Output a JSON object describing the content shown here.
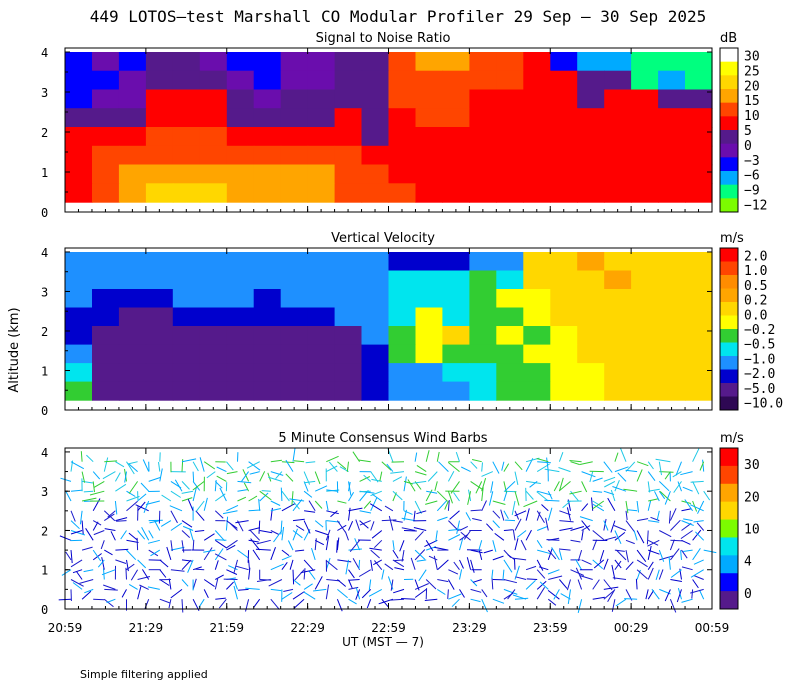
{
  "figure": {
    "title": "449 LOTOS—test Marshall CO Modular Profiler 29 Sep — 30 Sep 2025",
    "ylabel": "Altitude (km)",
    "xlabel": "UT  (MST — 7)",
    "footnote": "Simple filtering applied"
  },
  "chart_data": [
    {
      "type": "heatmap",
      "title": "Signal to Noise Ratio",
      "x_ticks": [
        "20:59",
        "21:29",
        "21:59",
        "22:29",
        "22:59",
        "23:29",
        "23:59",
        "00:29",
        "00:59"
      ],
      "y_ticks": [
        "0",
        "1",
        "2",
        "3",
        "4"
      ],
      "ylim": [
        0,
        4.1
      ],
      "colorbar": {
        "unit": "dB",
        "labels": [
          "30",
          "25",
          "20",
          "15",
          "10",
          "5",
          "0",
          "−3",
          "−6",
          "−9",
          "−12"
        ],
        "colors": [
          "#ffffff",
          "#ffff00",
          "#ffd700",
          "#ffa500",
          "#ff4500",
          "#ff0000",
          "#551a8b",
          "#6a0dad",
          "#0000ff",
          "#00aaff",
          "#00ff7f",
          "#7cfc00"
        ]
      },
      "cells": [
        [
          8,
          7,
          8,
          6,
          6,
          7,
          8,
          8,
          7,
          7,
          6,
          6,
          4,
          3,
          3,
          4,
          4,
          5,
          8,
          9,
          9,
          10,
          10,
          10
        ],
        [
          8,
          8,
          7,
          6,
          6,
          6,
          7,
          8,
          7,
          7,
          6,
          6,
          4,
          4,
          4,
          4,
          4,
          5,
          5,
          6,
          6,
          10,
          9,
          10
        ],
        [
          8,
          7,
          7,
          5,
          5,
          5,
          6,
          7,
          6,
          6,
          6,
          6,
          4,
          4,
          4,
          5,
          5,
          5,
          5,
          6,
          5,
          5,
          6,
          6
        ],
        [
          6,
          6,
          6,
          5,
          5,
          5,
          6,
          6,
          6,
          6,
          5,
          6,
          5,
          4,
          4,
          5,
          5,
          5,
          5,
          5,
          5,
          5,
          5,
          5
        ],
        [
          5,
          5,
          5,
          4,
          4,
          4,
          5,
          5,
          5,
          5,
          5,
          6,
          5,
          5,
          5,
          5,
          5,
          5,
          5,
          5,
          5,
          5,
          5,
          5
        ],
        [
          5,
          4,
          4,
          4,
          4,
          4,
          4,
          4,
          4,
          4,
          4,
          5,
          5,
          5,
          5,
          5,
          5,
          5,
          5,
          5,
          5,
          5,
          5,
          5
        ],
        [
          5,
          4,
          3,
          3,
          3,
          3,
          3,
          3,
          3,
          3,
          4,
          4,
          5,
          5,
          5,
          5,
          5,
          5,
          5,
          5,
          5,
          5,
          5,
          5
        ],
        [
          5,
          4,
          3,
          2,
          2,
          2,
          3,
          3,
          3,
          3,
          4,
          4,
          4,
          5,
          5,
          5,
          5,
          5,
          5,
          5,
          5,
          5,
          5,
          5
        ]
      ]
    },
    {
      "type": "heatmap",
      "title": "Vertical Velocity",
      "x_ticks": [
        "20:59",
        "21:29",
        "21:59",
        "22:29",
        "22:59",
        "23:29",
        "23:59",
        "00:29",
        "00:59"
      ],
      "y_ticks": [
        "0",
        "1",
        "2",
        "3",
        "4"
      ],
      "ylim": [
        0,
        4.1
      ],
      "colorbar": {
        "unit": "m/s",
        "labels": [
          "2.0",
          "1.0",
          "0.5",
          "0.2",
          "0.0",
          "−0.2",
          "−0.5",
          "−1.0",
          "−2.0",
          "−5.0",
          "−10.0"
        ],
        "colors": [
          "#ff0000",
          "#ff4500",
          "#ff8c00",
          "#ffa500",
          "#ffd700",
          "#ffff00",
          "#32cd32",
          "#00e5ee",
          "#1e90ff",
          "#0000cd",
          "#551a8b",
          "#2e0854"
        ]
      },
      "cells": [
        [
          8,
          8,
          8,
          8,
          8,
          8,
          8,
          8,
          8,
          8,
          8,
          8,
          9,
          9,
          9,
          8,
          8,
          4,
          4,
          3,
          4,
          4,
          4,
          4
        ],
        [
          8,
          8,
          8,
          8,
          8,
          8,
          8,
          8,
          8,
          8,
          8,
          8,
          7,
          7,
          7,
          6,
          7,
          4,
          4,
          4,
          3,
          4,
          4,
          4
        ],
        [
          8,
          9,
          9,
          9,
          8,
          8,
          8,
          9,
          8,
          8,
          8,
          8,
          7,
          7,
          7,
          6,
          5,
          5,
          4,
          4,
          4,
          4,
          4,
          4
        ],
        [
          9,
          9,
          10,
          10,
          9,
          9,
          9,
          9,
          9,
          9,
          8,
          8,
          7,
          5,
          7,
          6,
          6,
          5,
          4,
          4,
          4,
          4,
          4,
          4
        ],
        [
          9,
          10,
          10,
          10,
          10,
          10,
          10,
          10,
          10,
          10,
          10,
          8,
          6,
          5,
          4,
          6,
          5,
          6,
          5,
          4,
          4,
          4,
          4,
          4
        ],
        [
          8,
          10,
          10,
          10,
          10,
          10,
          10,
          10,
          10,
          10,
          10,
          9,
          6,
          5,
          6,
          6,
          6,
          5,
          5,
          4,
          4,
          4,
          4,
          4
        ],
        [
          7,
          10,
          10,
          10,
          10,
          10,
          10,
          10,
          10,
          10,
          10,
          9,
          8,
          8,
          7,
          7,
          6,
          6,
          5,
          5,
          4,
          4,
          4,
          4
        ],
        [
          6,
          10,
          10,
          10,
          10,
          10,
          10,
          10,
          10,
          10,
          10,
          9,
          8,
          8,
          8,
          7,
          6,
          6,
          5,
          5,
          4,
          4,
          4,
          4
        ]
      ]
    },
    {
      "type": "wind-barbs",
      "title": "5 Minute Consensus Wind Barbs",
      "x_ticks": [
        "20:59",
        "21:29",
        "21:59",
        "22:29",
        "22:59",
        "23:29",
        "23:59",
        "00:29",
        "00:59"
      ],
      "y_ticks": [
        "0",
        "1",
        "2",
        "3",
        "4"
      ],
      "ylim": [
        0,
        4.1
      ],
      "colorbar": {
        "unit": "m/s",
        "labels": [
          "30",
          "20",
          "10",
          "4",
          "0"
        ],
        "colors": [
          "#ff0000",
          "#ff4500",
          "#ffa500",
          "#ffd700",
          "#7cfc00",
          "#00e5ee",
          "#00aaff",
          "#0000ff",
          "#551a8b"
        ]
      }
    }
  ]
}
